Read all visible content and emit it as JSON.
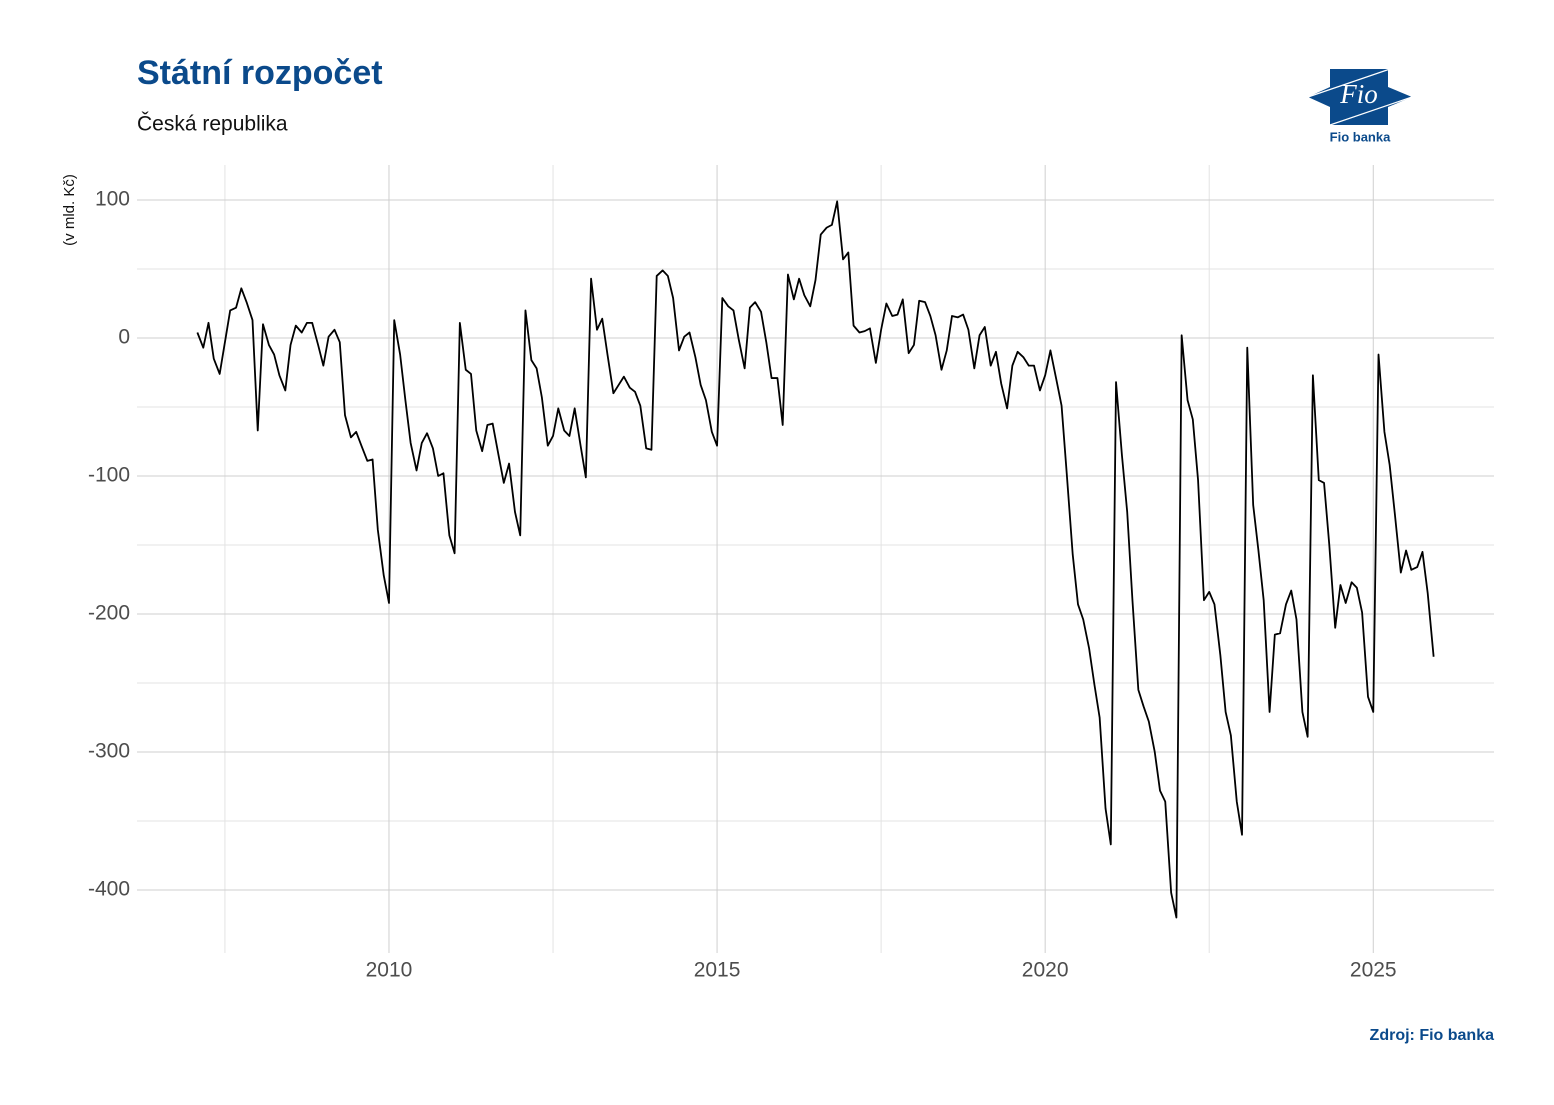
{
  "chart_data": {
    "type": "line",
    "title": "Státní rozpočet",
    "subtitle": "Česká republika",
    "y_label": "(v mld. Kč)",
    "source": "Zdroj: Fio banka",
    "logo_text": "Fio",
    "logo_caption": "Fio banka",
    "color": "#000000",
    "grid": true,
    "xlim": [
      2006.16,
      2026.84
    ],
    "xticks": [
      2010,
      2015,
      2020,
      2025
    ],
    "x_minor_grid": [
      2007.5,
      2012.5,
      2017.5,
      2022.5
    ],
    "ylim": [
      -445.7,
      125.4
    ],
    "yticks": [
      100,
      0,
      -100,
      -200,
      -300,
      -400
    ],
    "y_minor_grid": [
      50,
      -50,
      -150,
      -250,
      -350
    ],
    "x": [
      2007.08,
      2007.17,
      2007.25,
      2007.33,
      2007.42,
      2007.5,
      2007.58,
      2007.67,
      2007.75,
      2007.83,
      2007.92,
      2008,
      2008.08,
      2008.17,
      2008.25,
      2008.33,
      2008.42,
      2008.5,
      2008.58,
      2008.67,
      2008.75,
      2008.83,
      2008.92,
      2009,
      2009.08,
      2009.17,
      2009.25,
      2009.33,
      2009.42,
      2009.5,
      2009.58,
      2009.67,
      2009.75,
      2009.83,
      2009.92,
      2010,
      2010.08,
      2010.17,
      2010.25,
      2010.33,
      2010.42,
      2010.5,
      2010.58,
      2010.67,
      2010.75,
      2010.83,
      2010.92,
      2011,
      2011.08,
      2011.17,
      2011.25,
      2011.33,
      2011.42,
      2011.5,
      2011.58,
      2011.67,
      2011.75,
      2011.83,
      2011.92,
      2012,
      2012.08,
      2012.17,
      2012.25,
      2012.33,
      2012.42,
      2012.5,
      2012.58,
      2012.67,
      2012.75,
      2012.83,
      2012.92,
      2013,
      2013.08,
      2013.17,
      2013.25,
      2013.33,
      2013.42,
      2013.5,
      2013.58,
      2013.67,
      2013.75,
      2013.83,
      2013.92,
      2014,
      2014.08,
      2014.17,
      2014.25,
      2014.33,
      2014.42,
      2014.5,
      2014.58,
      2014.67,
      2014.75,
      2014.83,
      2014.92,
      2015,
      2015.08,
      2015.17,
      2015.25,
      2015.33,
      2015.42,
      2015.5,
      2015.58,
      2015.67,
      2015.75,
      2015.83,
      2015.92,
      2016,
      2016.08,
      2016.17,
      2016.25,
      2016.33,
      2016.42,
      2016.5,
      2016.58,
      2016.67,
      2016.75,
      2016.83,
      2016.92,
      2017,
      2017.08,
      2017.17,
      2017.25,
      2017.33,
      2017.42,
      2017.5,
      2017.58,
      2017.67,
      2017.75,
      2017.83,
      2017.92,
      2018,
      2018.08,
      2018.17,
      2018.25,
      2018.33,
      2018.42,
      2018.5,
      2018.58,
      2018.67,
      2018.75,
      2018.83,
      2018.92,
      2019,
      2019.08,
      2019.17,
      2019.25,
      2019.33,
      2019.42,
      2019.5,
      2019.58,
      2019.67,
      2019.75,
      2019.83,
      2019.92,
      2020,
      2020.08,
      2020.17,
      2020.25,
      2020.33,
      2020.42,
      2020.5,
      2020.58,
      2020.67,
      2020.75,
      2020.83,
      2020.92,
      2021,
      2021.08,
      2021.17,
      2021.25,
      2021.33,
      2021.42,
      2021.5,
      2021.58,
      2021.67,
      2021.75,
      2021.83,
      2021.92,
      2022,
      2022.08,
      2022.17,
      2022.25,
      2022.33,
      2022.42,
      2022.5,
      2022.58,
      2022.67,
      2022.75,
      2022.83,
      2022.92,
      2023,
      2023.08,
      2023.17,
      2023.25,
      2023.33,
      2023.42,
      2023.5,
      2023.58,
      2023.67,
      2023.75,
      2023.83,
      2023.92,
      2024,
      2024.08,
      2024.17,
      2024.25,
      2024.33,
      2024.42,
      2024.5,
      2024.58,
      2024.67,
      2024.75,
      2024.83,
      2024.92,
      2025,
      2025.08,
      2025.17,
      2025.25,
      2025.33,
      2025.42,
      2025.5,
      2025.58,
      2025.67,
      2025.75,
      2025.83,
      2025.92
    ],
    "values": [
      4,
      -7,
      11,
      -15,
      -26,
      -3,
      20,
      22,
      36,
      26,
      13,
      -67,
      10,
      -5,
      -12,
      -27,
      -38,
      -5,
      9,
      4,
      11,
      11,
      -5,
      -20,
      1,
      6,
      -3,
      -56,
      -72,
      -68,
      -78,
      -89,
      -88,
      -139,
      -172,
      -192,
      13,
      -12,
      -45,
      -76,
      -96,
      -76,
      -69,
      -80,
      -100,
      -98,
      -143,
      -156,
      11,
      -23,
      -26,
      -67,
      -82,
      -63,
      -62,
      -85,
      -105,
      -91,
      -126,
      -143,
      20,
      -16,
      -22,
      -43,
      -78,
      -71,
      -51,
      -67,
      -71,
      -51,
      -78,
      -101,
      43,
      6,
      14,
      -12,
      -40,
      -34,
      -28,
      -36,
      -39,
      -49,
      -80,
      -81,
      45,
      49,
      45,
      29,
      -9,
      1,
      4,
      -14,
      -34,
      -45,
      -68,
      -78,
      29,
      23,
      20,
      -1,
      -22,
      22,
      26,
      19,
      -3,
      -29,
      -29,
      -63,
      46,
      28,
      43,
      31,
      23,
      42,
      75,
      80,
      82,
      99,
      57,
      62,
      9,
      4,
      5,
      7,
      -18,
      6,
      25,
      16,
      17,
      28,
      -11,
      -5,
      27,
      26,
      16,
      2,
      -23,
      -9,
      16,
      15,
      17,
      6,
      -22,
      2,
      8,
      -20,
      -10,
      -33,
      -51,
      -20,
      -10,
      -14,
      -20,
      -20,
      -38,
      -27,
      -9,
      -30,
      -49,
      -99,
      -157,
      -193,
      -204,
      -225,
      -251,
      -275,
      -341,
      -367,
      -32,
      -85,
      -126,
      -190,
      -255,
      -267,
      -278,
      -300,
      -328,
      -336,
      -402,
      -420,
      2,
      -45,
      -59,
      -103,
      -190,
      -184,
      -193,
      -230,
      -271,
      -288,
      -336,
      -360,
      -7,
      -121,
      -154,
      -190,
      -271,
      -215,
      -214,
      -193,
      -183,
      -204,
      -271,
      -289,
      -27,
      -103,
      -105,
      -150,
      -210,
      -179,
      -192,
      -177,
      -181,
      -199,
      -260,
      -271,
      -12,
      -68,
      -92,
      -128,
      -170,
      -154,
      -168,
      -166,
      -155,
      -185,
      -231
    ]
  }
}
